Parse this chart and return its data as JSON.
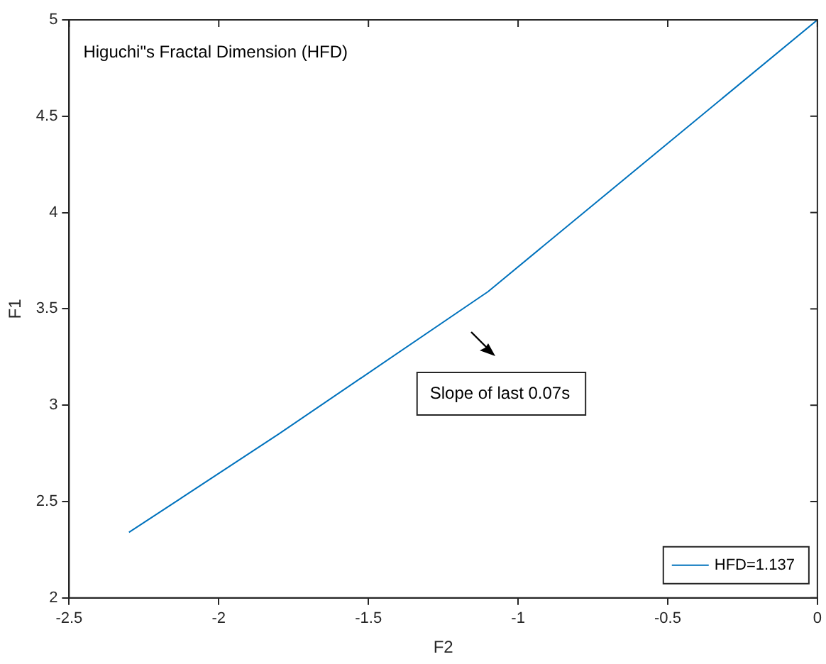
{
  "chart_data": {
    "type": "line",
    "title": "Higuchi\"s Fractal Dimension (HFD)",
    "xlabel": "F2",
    "ylabel": "F1",
    "x": [
      -2.3,
      -1.8,
      -1.1,
      0
    ],
    "series": [
      {
        "name": "HFD=1.137",
        "color": "#0072bd",
        "values": [
          2.34,
          2.85,
          3.59,
          5
        ]
      }
    ],
    "xlim": [
      -2.5,
      0
    ],
    "xticks": [
      -2.5,
      -2,
      -1.5,
      -1,
      -0.5,
      0
    ],
    "ylim": [
      2,
      5
    ],
    "yticks": [
      2,
      2.5,
      3,
      3.5,
      4,
      4.5,
      5
    ],
    "annotations": [
      "Slope of last 0.07s"
    ],
    "grid": false,
    "legend": "bottom right",
    "marker": "none",
    "line_style": "solid"
  }
}
